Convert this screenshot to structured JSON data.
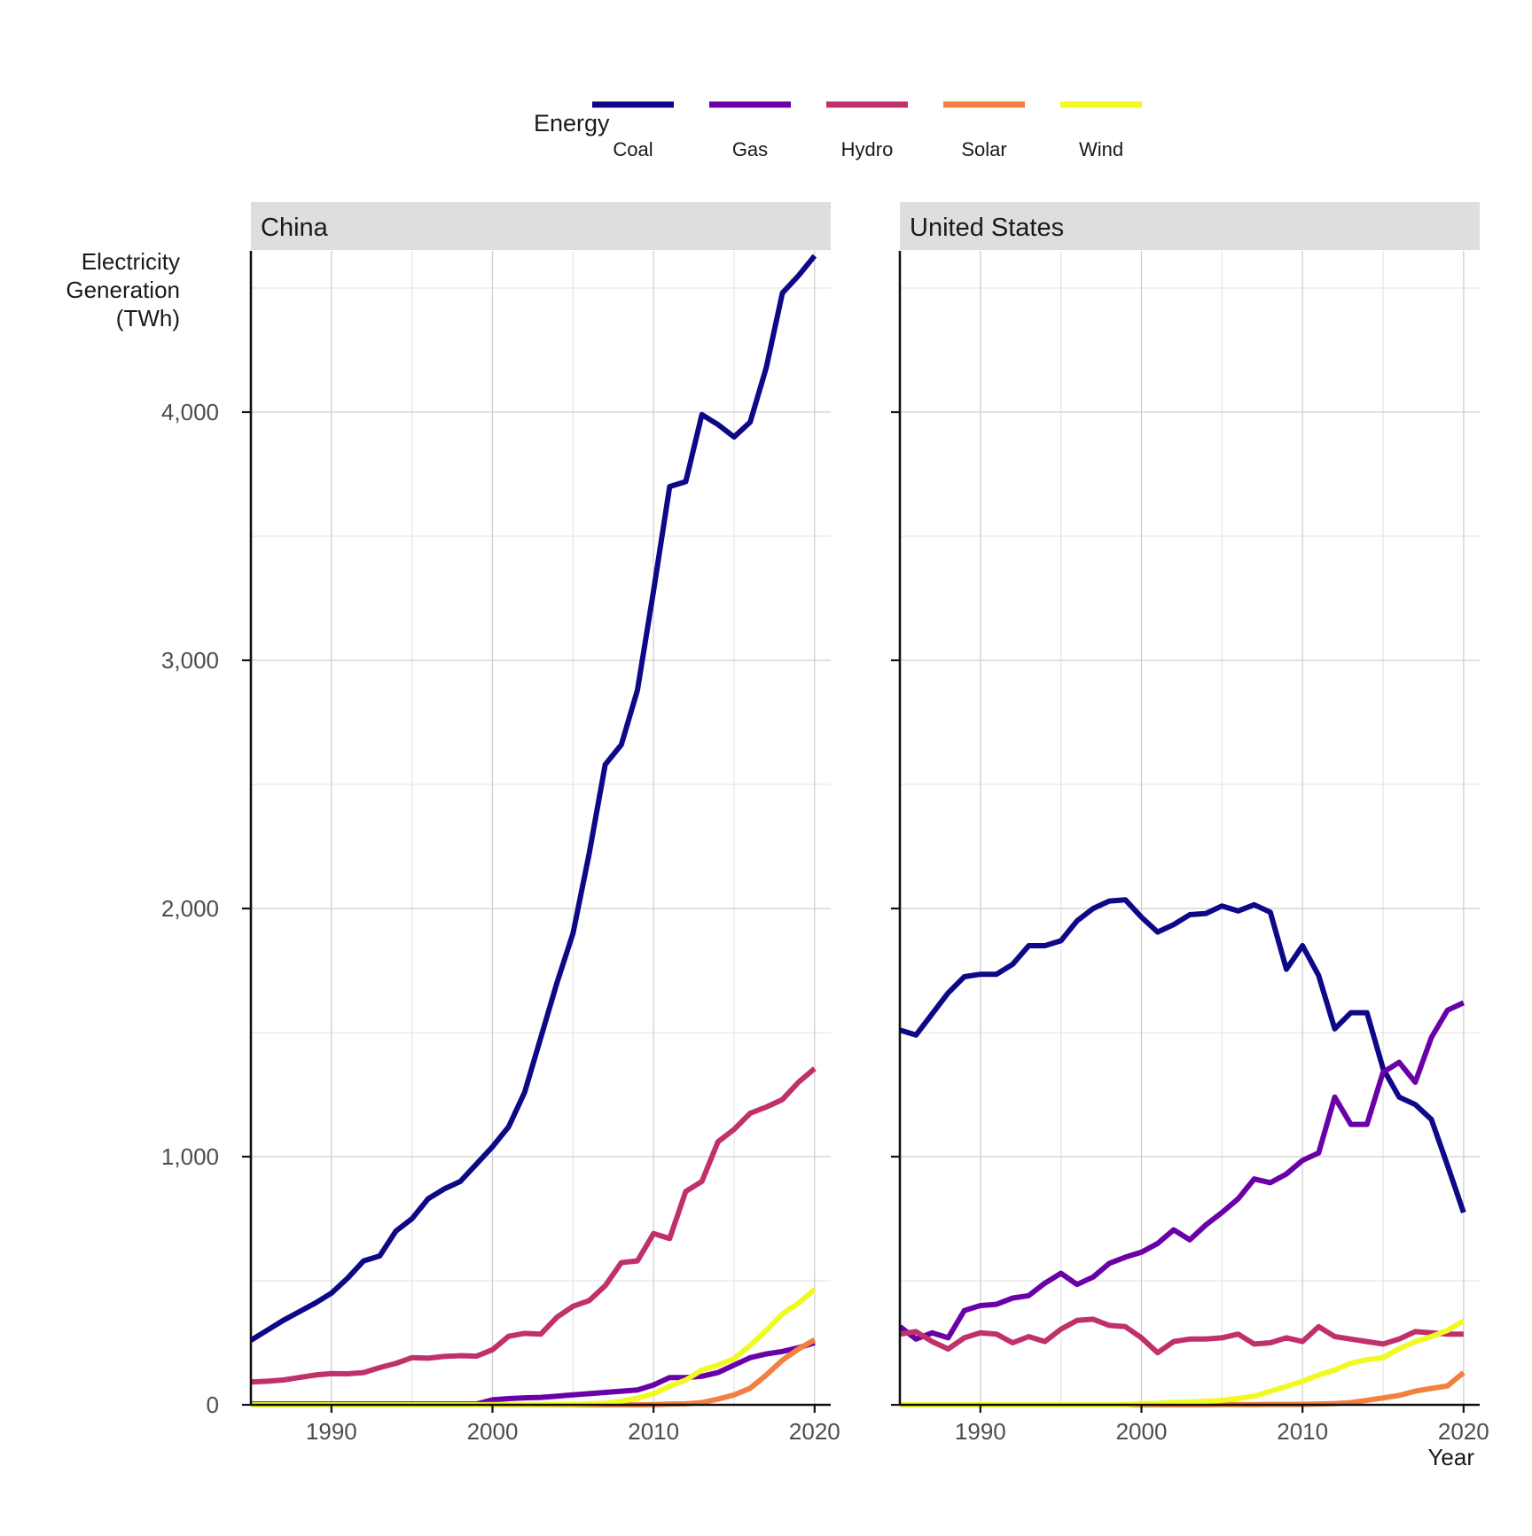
{
  "chart_data": {
    "type": "line",
    "legend": {
      "title": "Energy",
      "position": "top",
      "items": [
        {
          "label": "Coal",
          "color": "#0d0887"
        },
        {
          "label": "Gas",
          "color": "#6a00a8"
        },
        {
          "label": "Hydro",
          "color": "#b12a90"
        },
        {
          "label": "Solar",
          "color": "#e16462"
        },
        {
          "label": "Wind",
          "color": "#fca636"
        }
      ]
    },
    "colors": {
      "Coal": "#0d0887",
      "Gas": "#6a00a8",
      "Hydro": "#c0306a",
      "Solar": "#f28040",
      "Wind": "#f0f921"
    },
    "ylabel": "Electricity Generation (TWh)",
    "xlabel": "Year",
    "xlim": [
      1985,
      2021
    ],
    "ylim": [
      0,
      4650
    ],
    "x_ticks": [
      1990,
      2000,
      2010,
      2020
    ],
    "x_tick_labels": [
      "1990",
      "2000",
      "2010",
      "2020"
    ],
    "y_ticks": [
      0,
      1000,
      2000,
      3000,
      4000
    ],
    "y_tick_labels": [
      "0",
      "1,000",
      "2,000",
      "3,000",
      "4,000"
    ],
    "grid": true,
    "x": [
      1985,
      1986,
      1987,
      1988,
      1989,
      1990,
      1991,
      1992,
      1993,
      1994,
      1995,
      1996,
      1997,
      1998,
      1999,
      2000,
      2001,
      2002,
      2003,
      2004,
      2005,
      2006,
      2007,
      2008,
      2009,
      2010,
      2011,
      2012,
      2013,
      2014,
      2015,
      2016,
      2017,
      2018,
      2019,
      2020
    ],
    "panels": [
      {
        "title": "China",
        "series": [
          {
            "name": "Coal",
            "values": [
              260,
              300,
              340,
              375,
              410,
              450,
              510,
              580,
              600,
              700,
              750,
              830,
              870,
              900,
              970,
              1040,
              1120,
              1260,
              1480,
              1700,
              1900,
              2220,
              2580,
              2660,
              2880,
              3280,
              3700,
              3720,
              3990,
              3950,
              3900,
              3960,
              4180,
              4480,
              4550,
              4630
            ]
          },
          {
            "name": "Gas",
            "values": [
              3,
              3,
              3,
              3,
              3,
              3,
              3,
              3,
              3,
              3,
              3,
              3,
              3,
              3,
              3,
              20,
              25,
              28,
              30,
              35,
              40,
              45,
              50,
              55,
              60,
              80,
              110,
              110,
              115,
              130,
              160,
              190,
              205,
              215,
              230,
              250
            ]
          },
          {
            "name": "Hydro",
            "values": [
              92,
              95,
              100,
              110,
              120,
              126,
              125,
              130,
              150,
              167,
              190,
              188,
              195,
              198,
              196,
              222,
              276,
              288,
              285,
              353,
              397,
              420,
              480,
              573,
              580,
              690,
              670,
              860,
              900,
              1060,
              1110,
              1175,
              1200,
              1230,
              1300,
              1355
            ]
          },
          {
            "name": "Solar",
            "values": [
              0,
              0,
              0,
              0,
              0,
              0,
              0,
              0,
              0,
              0,
              0,
              0,
              0,
              0,
              0,
              0,
              0,
              0,
              0,
              0,
              0,
              0,
              0,
              0,
              0,
              1,
              3,
              4,
              9,
              23,
              40,
              67,
              120,
              180,
              225,
              262
            ]
          },
          {
            "name": "Wind",
            "values": [
              0,
              0,
              0,
              0,
              0,
              0,
              0,
              0,
              0,
              0,
              0,
              0,
              0,
              0,
              0,
              1,
              1,
              1,
              1,
              2,
              2,
              4,
              6,
              15,
              27,
              45,
              75,
              100,
              140,
              160,
              186,
              240,
              300,
              366,
              410,
              465
            ]
          }
        ]
      },
      {
        "title": "United States",
        "series": [
          {
            "name": "Coal",
            "values": [
              1510,
              1490,
              1575,
              1660,
              1725,
              1735,
              1735,
              1775,
              1850,
              1850,
              1870,
              1950,
              2000,
              2030,
              2035,
              1965,
              1905,
              1935,
              1975,
              1980,
              2010,
              1990,
              2015,
              1985,
              1755,
              1850,
              1730,
              1515,
              1580,
              1580,
              1355,
              1240,
              1210,
              1150,
              965,
              775
            ]
          },
          {
            "name": "Gas",
            "values": [
              315,
              265,
              290,
              270,
              380,
              400,
              405,
              430,
              440,
              490,
              530,
              485,
              515,
              570,
              595,
              615,
              650,
              705,
              665,
              725,
              775,
              830,
              910,
              895,
              930,
              985,
              1015,
              1240,
              1130,
              1130,
              1340,
              1380,
              1300,
              1480,
              1590,
              1620
            ]
          },
          {
            "name": "Hydro",
            "values": [
              285,
              295,
              255,
              225,
              270,
              290,
              285,
              250,
              275,
              255,
              305,
              340,
              345,
              320,
              315,
              270,
              210,
              255,
              265,
              265,
              270,
              285,
              245,
              250,
              270,
              255,
              315,
              275,
              265,
              255,
              245,
              265,
              295,
              290,
              285,
              285
            ]
          },
          {
            "name": "Solar",
            "values": [
              0,
              0,
              0,
              0,
              0,
              0,
              0,
              0,
              0,
              0,
              0,
              0,
              0,
              0,
              0,
              0,
              0,
              0,
              0,
              0,
              1,
              1,
              1,
              2,
              2,
              2,
              3,
              5,
              9,
              18,
              28,
              38,
              55,
              66,
              76,
              130
            ]
          },
          {
            "name": "Wind",
            "values": [
              0,
              0,
              0,
              0,
              0,
              0,
              0,
              0,
              0,
              0,
              0,
              0,
              0,
              0,
              0,
              5,
              6,
              10,
              11,
              14,
              18,
              26,
              35,
              55,
              74,
              95,
              120,
              140,
              168,
              182,
              190,
              226,
              254,
              275,
              300,
              338
            ]
          }
        ]
      }
    ]
  }
}
